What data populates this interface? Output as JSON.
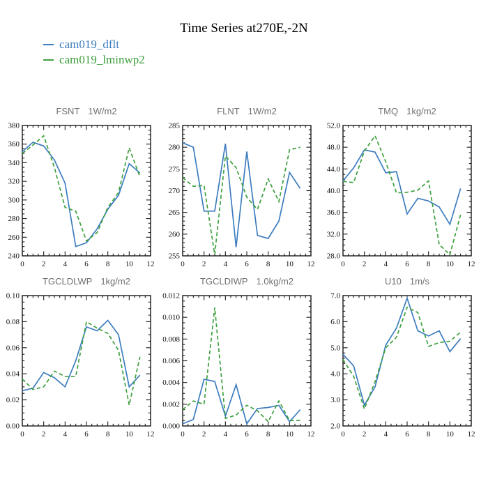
{
  "page": {
    "title": "Time Series at270E,-2N"
  },
  "legend": {
    "items": [
      {
        "label": "cam019_dflt",
        "color": "#3d7dbf",
        "dash": "solid"
      },
      {
        "label": "cam019_lminwp2",
        "color": "#3ea03e",
        "dash": "dashed"
      }
    ]
  },
  "chart_data": [
    {
      "type": "line",
      "title": "FSNT",
      "units": "1W/m2",
      "xlim": [
        0,
        12
      ],
      "xticks": [
        0,
        2,
        4,
        6,
        8,
        10,
        12
      ],
      "xminor": 0.5,
      "ylim": [
        240,
        380
      ],
      "yticks": [
        240,
        260,
        280,
        300,
        320,
        340,
        360,
        380
      ],
      "ytick_labels": [
        "240",
        "260",
        "280",
        "300",
        "320",
        "340",
        "360",
        "380"
      ],
      "yminor": 5,
      "grid": false,
      "legend_position": "top-left-of-page",
      "x": [
        0,
        1,
        2,
        3,
        4,
        5,
        6,
        7,
        8,
        9,
        10,
        11
      ],
      "series": [
        {
          "name": "cam019_dflt",
          "color": "#3d7dbf",
          "dash": "solid",
          "values": [
            352,
            362,
            358,
            343,
            318,
            250,
            254,
            269,
            290,
            305,
            339,
            329
          ]
        },
        {
          "name": "cam019_lminwp2",
          "color": "#3ea03e",
          "dash": "dashed",
          "values": [
            350,
            359,
            369,
            335,
            292,
            288,
            256,
            265,
            292,
            308,
            356,
            325
          ]
        }
      ]
    },
    {
      "type": "line",
      "title": "FLNT",
      "units": "1W/m2",
      "xlim": [
        0,
        12
      ],
      "xticks": [
        0,
        2,
        4,
        6,
        8,
        10,
        12
      ],
      "xminor": 0.5,
      "ylim": [
        255,
        285
      ],
      "yticks": [
        255,
        260,
        265,
        270,
        275,
        280,
        285
      ],
      "ytick_labels": [
        "255",
        "260",
        "265",
        "270",
        "275",
        "280",
        "285"
      ],
      "yminor": 1,
      "grid": false,
      "x": [
        0,
        1,
        2,
        3,
        4,
        5,
        6,
        7,
        8,
        9,
        10,
        11
      ],
      "series": [
        {
          "name": "cam019_dflt",
          "color": "#3d7dbf",
          "dash": "solid",
          "values": [
            281,
            280,
            265.3,
            265.3,
            280.8,
            257,
            279,
            259.7,
            259,
            263,
            274.2,
            270.5
          ]
        },
        {
          "name": "cam019_lminwp2",
          "color": "#3ea03e",
          "dash": "dashed",
          "values": [
            273,
            271,
            271.2,
            255.3,
            278,
            275.3,
            268.5,
            265.7,
            272.7,
            267.5,
            279.4,
            280
          ]
        }
      ]
    },
    {
      "type": "line",
      "title": "TMQ",
      "units": "1kg/m2",
      "xlim": [
        0,
        12
      ],
      "xticks": [
        0,
        2,
        4,
        6,
        8,
        10,
        12
      ],
      "xminor": 0.5,
      "ylim": [
        28,
        52
      ],
      "yticks": [
        28,
        32,
        36,
        40,
        44,
        48,
        52
      ],
      "ytick_labels": [
        "28.0",
        "32.0",
        "36.0",
        "40.0",
        "44.0",
        "48.0",
        "52.0"
      ],
      "yminor": 1,
      "grid": false,
      "x": [
        0,
        1,
        2,
        3,
        4,
        5,
        6,
        7,
        8,
        9,
        10,
        11
      ],
      "series": [
        {
          "name": "cam019_dflt",
          "color": "#3d7dbf",
          "dash": "solid",
          "values": [
            41.8,
            44.2,
            47.5,
            47.1,
            43.3,
            43.5,
            35.7,
            38.6,
            38.1,
            37.0,
            33.8,
            40.4
          ]
        },
        {
          "name": "cam019_lminwp2",
          "color": "#3ea03e",
          "dash": "dashed",
          "values": [
            41.7,
            41.5,
            47.3,
            50.1,
            45.3,
            39.6,
            39.7,
            40.1,
            41.8,
            30.1,
            28.2,
            35.6
          ]
        }
      ]
    },
    {
      "type": "line",
      "title": "TGCLDLWP",
      "units": "1kg/m2",
      "xlim": [
        0,
        12
      ],
      "xticks": [
        0,
        2,
        4,
        6,
        8,
        10,
        12
      ],
      "xminor": 0.5,
      "ylim": [
        0.0,
        0.1
      ],
      "yticks": [
        0.0,
        0.02,
        0.04,
        0.06,
        0.08,
        0.1
      ],
      "ytick_labels": [
        "0.00",
        "0.02",
        "0.04",
        "0.06",
        "0.08",
        "0.10"
      ],
      "yminor": 0.005,
      "grid": false,
      "x": [
        0,
        1,
        2,
        3,
        4,
        5,
        6,
        7,
        8,
        9,
        10,
        11
      ],
      "series": [
        {
          "name": "cam019_dflt",
          "color": "#3d7dbf",
          "dash": "solid",
          "values": [
            0.027,
            0.029,
            0.041,
            0.037,
            0.03,
            0.05,
            0.076,
            0.073,
            0.081,
            0.07,
            0.03,
            0.039
          ]
        },
        {
          "name": "cam019_lminwp2",
          "color": "#3ea03e",
          "dash": "dashed",
          "values": [
            0.036,
            0.028,
            0.03,
            0.042,
            0.038,
            0.038,
            0.08,
            0.075,
            0.071,
            0.058,
            0.016,
            0.053
          ]
        }
      ]
    },
    {
      "type": "line",
      "title": "TGCLDIWP",
      "units": "1.0kg/m2",
      "xlim": [
        0,
        12
      ],
      "xticks": [
        0,
        2,
        4,
        6,
        8,
        10,
        12
      ],
      "xminor": 0.5,
      "ylim": [
        0.0,
        0.012
      ],
      "yticks": [
        0.0,
        0.002,
        0.004,
        0.006,
        0.008,
        0.01,
        0.012
      ],
      "ytick_labels": [
        "0.000",
        "0.002",
        "0.004",
        "0.006",
        "0.008",
        "0.010",
        "0.012"
      ],
      "yminor": 0.0005,
      "grid": false,
      "x": [
        0,
        1,
        2,
        3,
        4,
        5,
        6,
        7,
        8,
        9,
        10,
        11
      ],
      "series": [
        {
          "name": "cam019_dflt",
          "color": "#3d7dbf",
          "dash": "solid",
          "values": [
            0.0002,
            0.0006,
            0.0043,
            0.0041,
            0.0009,
            0.0038,
            0.0002,
            0.0016,
            0.0017,
            0.0019,
            0.0004,
            0.0015
          ]
        },
        {
          "name": "cam019_lminwp2",
          "color": "#3ea03e",
          "dash": "dashed",
          "values": [
            0.0015,
            0.0023,
            0.002,
            0.0109,
            0.0007,
            0.001,
            0.0019,
            0.0014,
            0.0004,
            0.0023,
            0.0005,
            0.0005
          ]
        }
      ]
    },
    {
      "type": "line",
      "title": "U10",
      "units": "1m/s",
      "xlim": [
        0,
        12
      ],
      "xticks": [
        0,
        2,
        4,
        6,
        8,
        10,
        12
      ],
      "xminor": 0.5,
      "ylim": [
        2.0,
        7.0
      ],
      "yticks": [
        2,
        3,
        4,
        5,
        6,
        7
      ],
      "ytick_labels": [
        "2.0",
        "3.0",
        "4.0",
        "5.0",
        "6.0",
        "7.0"
      ],
      "yminor": 0.2,
      "grid": false,
      "x": [
        0,
        1,
        2,
        3,
        4,
        5,
        6,
        7,
        8,
        9,
        10,
        11
      ],
      "series": [
        {
          "name": "cam019_dflt",
          "color": "#3d7dbf",
          "dash": "solid",
          "values": [
            4.75,
            4.3,
            2.8,
            3.5,
            5.1,
            5.75,
            6.9,
            5.65,
            5.45,
            5.65,
            4.85,
            5.35
          ]
        },
        {
          "name": "cam019_lminwp2",
          "color": "#3ea03e",
          "dash": "dashed",
          "values": [
            4.55,
            3.9,
            2.65,
            3.7,
            5.0,
            5.4,
            6.55,
            6.35,
            5.05,
            5.2,
            5.25,
            5.6
          ]
        }
      ]
    }
  ]
}
